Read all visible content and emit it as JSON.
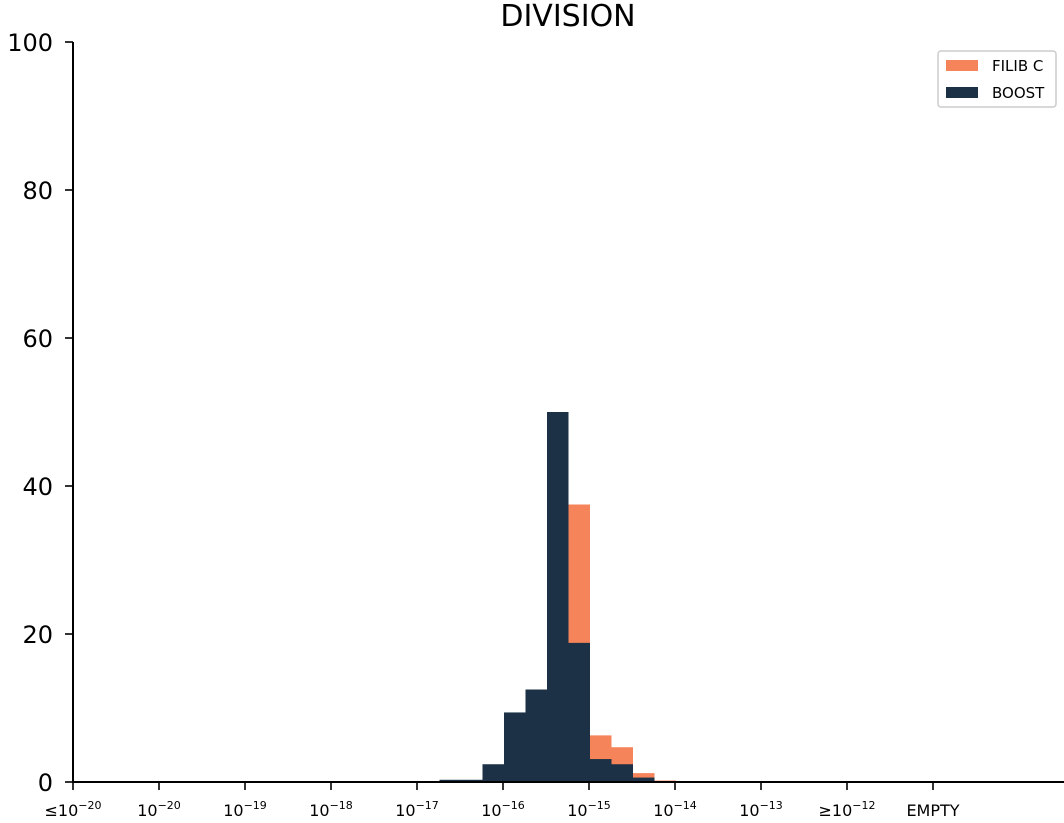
{
  "chart_data": {
    "type": "bar",
    "title": "DIVISION",
    "xlabel": "",
    "ylabel": "",
    "ylim": [
      0,
      100
    ],
    "yticks": [
      "0",
      "20",
      "40",
      "60",
      "80",
      "100"
    ],
    "xticks": [
      {
        "prefix": "≤",
        "base": "10",
        "exp": "−20"
      },
      {
        "prefix": "",
        "base": "10",
        "exp": "−20"
      },
      {
        "prefix": "",
        "base": "10",
        "exp": "−19"
      },
      {
        "prefix": "",
        "base": "10",
        "exp": "−18"
      },
      {
        "prefix": "",
        "base": "10",
        "exp": "−17"
      },
      {
        "prefix": "",
        "base": "10",
        "exp": "−16"
      },
      {
        "prefix": "",
        "base": "10",
        "exp": "−15"
      },
      {
        "prefix": "",
        "base": "10",
        "exp": "−14"
      },
      {
        "prefix": "",
        "base": "10",
        "exp": "−13"
      },
      {
        "prefix": "≥",
        "base": "10",
        "exp": "−12"
      },
      {
        "prefix": "EMPTY",
        "base": "",
        "exp": ""
      }
    ],
    "series": [
      {
        "name": "FILIB C",
        "color": "#f5845a",
        "values": [
          0,
          0,
          0,
          0,
          0,
          0,
          0,
          0,
          0,
          0,
          0,
          0,
          0,
          0,
          0,
          0,
          0,
          0,
          0.2,
          1.1,
          4.7,
          6.2,
          37.6,
          37.5,
          6.3,
          4.7,
          1.2,
          0.2,
          0,
          0,
          0,
          0,
          0,
          0,
          0,
          0,
          0,
          0,
          0,
          0,
          0,
          0,
          0,
          0,
          0,
          0
        ]
      },
      {
        "name": "BOOST",
        "color": "#1d3146",
        "values": [
          0,
          0,
          0,
          0,
          0,
          0,
          0,
          0,
          0,
          0,
          0,
          0,
          0,
          0,
          0,
          0,
          0,
          0.3,
          0.3,
          2.4,
          9.4,
          12.5,
          50.0,
          18.8,
          3.1,
          2.4,
          0.6,
          0,
          0,
          0,
          0,
          0,
          0,
          0,
          0,
          0,
          0,
          0,
          0,
          0,
          0,
          0,
          0,
          0,
          0,
          0
        ]
      }
    ],
    "legend": {
      "position": "top-right",
      "entries": [
        "FILIB C",
        "BOOST"
      ]
    },
    "grid": false
  }
}
